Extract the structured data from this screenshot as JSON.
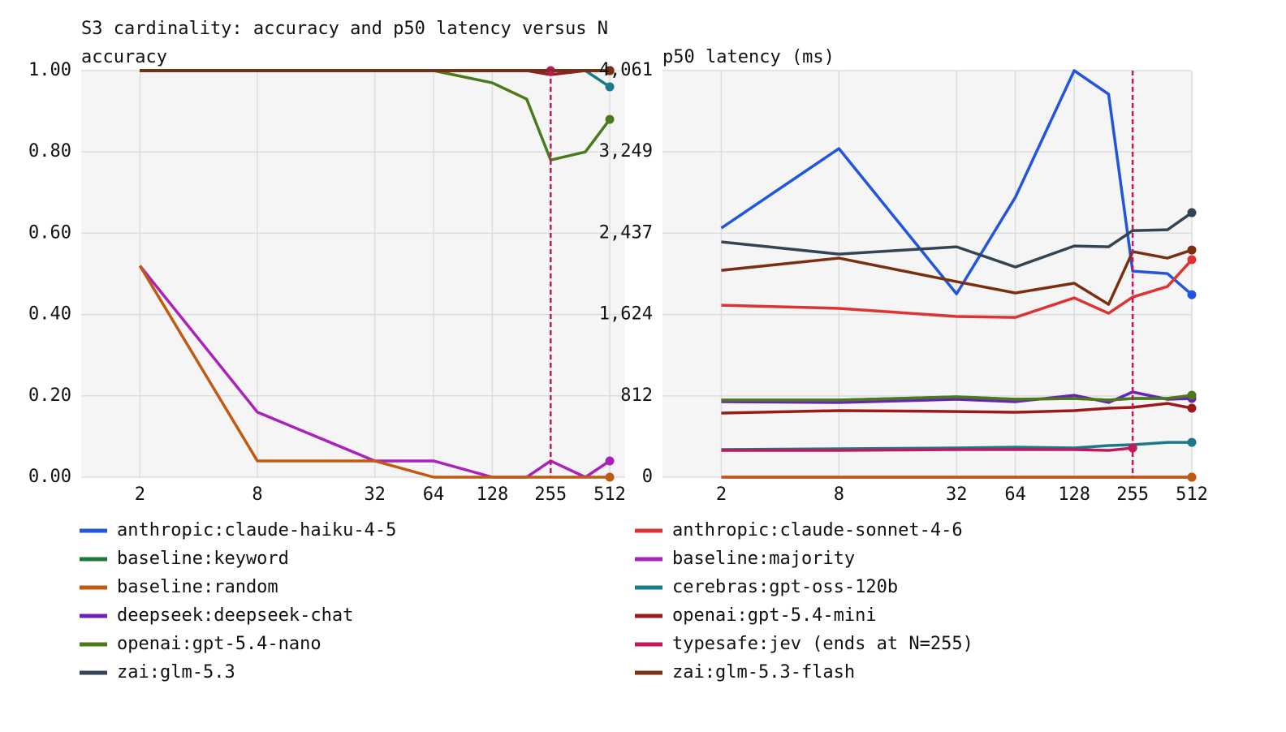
{
  "title": "S3 cardinality: accuracy and p50 latency versus N",
  "chart_data": [
    {
      "type": "line",
      "y_label": "accuracy",
      "x": [
        2,
        8,
        32,
        64,
        128,
        192,
        255,
        384,
        512
      ],
      "xscale": "log",
      "xlim": [
        1,
        614
      ],
      "xticks": [
        2,
        8,
        32,
        64,
        128,
        255,
        512
      ],
      "ylim": [
        0,
        1
      ],
      "yticks": [
        {
          "value": 0,
          "label": "0.00"
        },
        {
          "value": 0.2,
          "label": "0.20"
        },
        {
          "value": 0.4,
          "label": "0.40"
        },
        {
          "value": 0.6,
          "label": "0.60"
        },
        {
          "value": 0.8,
          "label": "0.80"
        },
        {
          "value": 1,
          "label": "1.00"
        }
      ],
      "grid": true,
      "vline": 255,
      "vline_color": "#c2185b",
      "series": [
        {
          "name": "anthropic:claude-haiku-4-5",
          "color": "#2255dd",
          "values": [
            1,
            1,
            1,
            1,
            1,
            1,
            1,
            1,
            1
          ]
        },
        {
          "name": "anthropic:claude-sonnet-4-6",
          "color": "#dd3333",
          "values": [
            1,
            1,
            1,
            1,
            1,
            1,
            1,
            1,
            1
          ]
        },
        {
          "name": "baseline:keyword",
          "color": "#1a7a3a",
          "values": [
            1,
            1,
            1,
            1,
            1,
            1,
            1,
            1,
            1
          ]
        },
        {
          "name": "baseline:majority",
          "color": "#aa22bb",
          "values": [
            0.52,
            0.16,
            0.04,
            0.04,
            0,
            0,
            0.04,
            0,
            0.04
          ]
        },
        {
          "name": "baseline:random",
          "color": "#c05a10",
          "values": [
            0.52,
            0.04,
            0.04,
            0,
            0,
            0,
            0,
            0,
            0
          ]
        },
        {
          "name": "cerebras:gpt-oss-120b",
          "color": "#1a7a8a",
          "values": [
            1,
            1,
            1,
            1,
            1,
            1,
            1,
            1,
            0.96
          ]
        },
        {
          "name": "deepseek:deepseek-chat",
          "color": "#6a22bb",
          "values": [
            1,
            1,
            1,
            1,
            1,
            1,
            1,
            1,
            1
          ]
        },
        {
          "name": "openai:gpt-5.4-mini",
          "color": "#9a1a1a",
          "values": [
            1,
            1,
            1,
            1,
            1,
            1,
            0.99,
            1,
            1
          ]
        },
        {
          "name": "openai:gpt-5.4-nano",
          "color": "#4a7a1a",
          "values": [
            1,
            1,
            1,
            1,
            0.97,
            0.93,
            0.78,
            0.8,
            0.88
          ]
        },
        {
          "name": "typesafe:jev (ends at N=255)",
          "color": "#c2185b",
          "values": [
            1,
            1,
            1,
            1,
            1,
            1,
            1,
            null,
            null
          ]
        },
        {
          "name": "zai:glm-5.3",
          "color": "#334455",
          "values": [
            1,
            1,
            1,
            1,
            1,
            1,
            1,
            1,
            1
          ]
        },
        {
          "name": "zai:glm-5.3-flash",
          "color": "#7a3010",
          "values": [
            1,
            1,
            1,
            1,
            1,
            1,
            1,
            1,
            1
          ]
        }
      ]
    },
    {
      "type": "line",
      "y_label": "p50 latency (ms)",
      "x": [
        2,
        8,
        32,
        64,
        128,
        192,
        255,
        384,
        512
      ],
      "xscale": "log",
      "xlim": [
        1,
        512
      ],
      "xticks": [
        2,
        8,
        32,
        64,
        128,
        255,
        512
      ],
      "ylim": [
        0,
        4061
      ],
      "yticks": [
        0,
        812,
        {
          "value": 1624,
          "label": "1,624"
        },
        {
          "value": 2437,
          "label": "2,437"
        },
        {
          "value": 3249,
          "label": "3,249"
        },
        {
          "value": 4061,
          "label": "4,061"
        }
      ],
      "grid": true,
      "vline": 255,
      "vline_color": "#c2185b",
      "series": [
        {
          "name": "anthropic:claude-haiku-4-5",
          "color": "#2255dd",
          "values": [
            2488,
            3282,
            1831,
            2796,
            4061,
            3825,
            2058,
            2034,
            1823
          ]
        },
        {
          "name": "anthropic:claude-sonnet-4-6",
          "color": "#dd3333",
          "values": [
            1718,
            1686,
            1605,
            1596,
            1791,
            1637,
            1799,
            1904,
            2172
          ]
        },
        {
          "name": "baseline:keyword",
          "color": "#1a7a3a",
          "values": [
            770,
            770,
            802,
            778,
            786,
            770,
            786,
            786,
            818
          ]
        },
        {
          "name": "baseline:majority",
          "color": "#aa22bb",
          "values": [
            0,
            0,
            0,
            0,
            0,
            0,
            0,
            0,
            0
          ]
        },
        {
          "name": "baseline:random",
          "color": "#c05a10",
          "values": [
            0,
            0,
            0,
            0,
            0,
            0,
            0,
            0,
            0
          ]
        },
        {
          "name": "cerebras:gpt-oss-120b",
          "color": "#1a7a8a",
          "values": [
            276,
            284,
            292,
            300,
            292,
            316,
            324,
            348,
            348
          ]
        },
        {
          "name": "deepseek:deepseek-chat",
          "color": "#6a22bb",
          "values": [
            754,
            746,
            778,
            754,
            818,
            746,
            851,
            778,
            786
          ]
        },
        {
          "name": "openai:gpt-5.4-mini",
          "color": "#9a1a1a",
          "values": [
            640,
            665,
            656,
            648,
            665,
            689,
            697,
            737,
            689
          ]
        },
        {
          "name": "openai:gpt-5.4-nano",
          "color": "#4a7a1a",
          "values": [
            770,
            770,
            802,
            778,
            786,
            770,
            786,
            786,
            818
          ]
        },
        {
          "name": "typesafe:jev (ends at N=255)",
          "color": "#c2185b",
          "values": [
            267,
            267,
            276,
            276,
            276,
            267,
            292,
            null,
            null
          ]
        },
        {
          "name": "zai:glm-5.3",
          "color": "#334455",
          "values": [
            2350,
            2228,
            2301,
            2099,
            2309,
            2301,
            2463,
            2471,
            2642
          ]
        },
        {
          "name": "zai:glm-5.3-flash",
          "color": "#7a3010",
          "values": [
            2066,
            2188,
            1953,
            1840,
            1937,
            1726,
            2253,
            2188,
            2269
          ]
        }
      ]
    }
  ]
}
